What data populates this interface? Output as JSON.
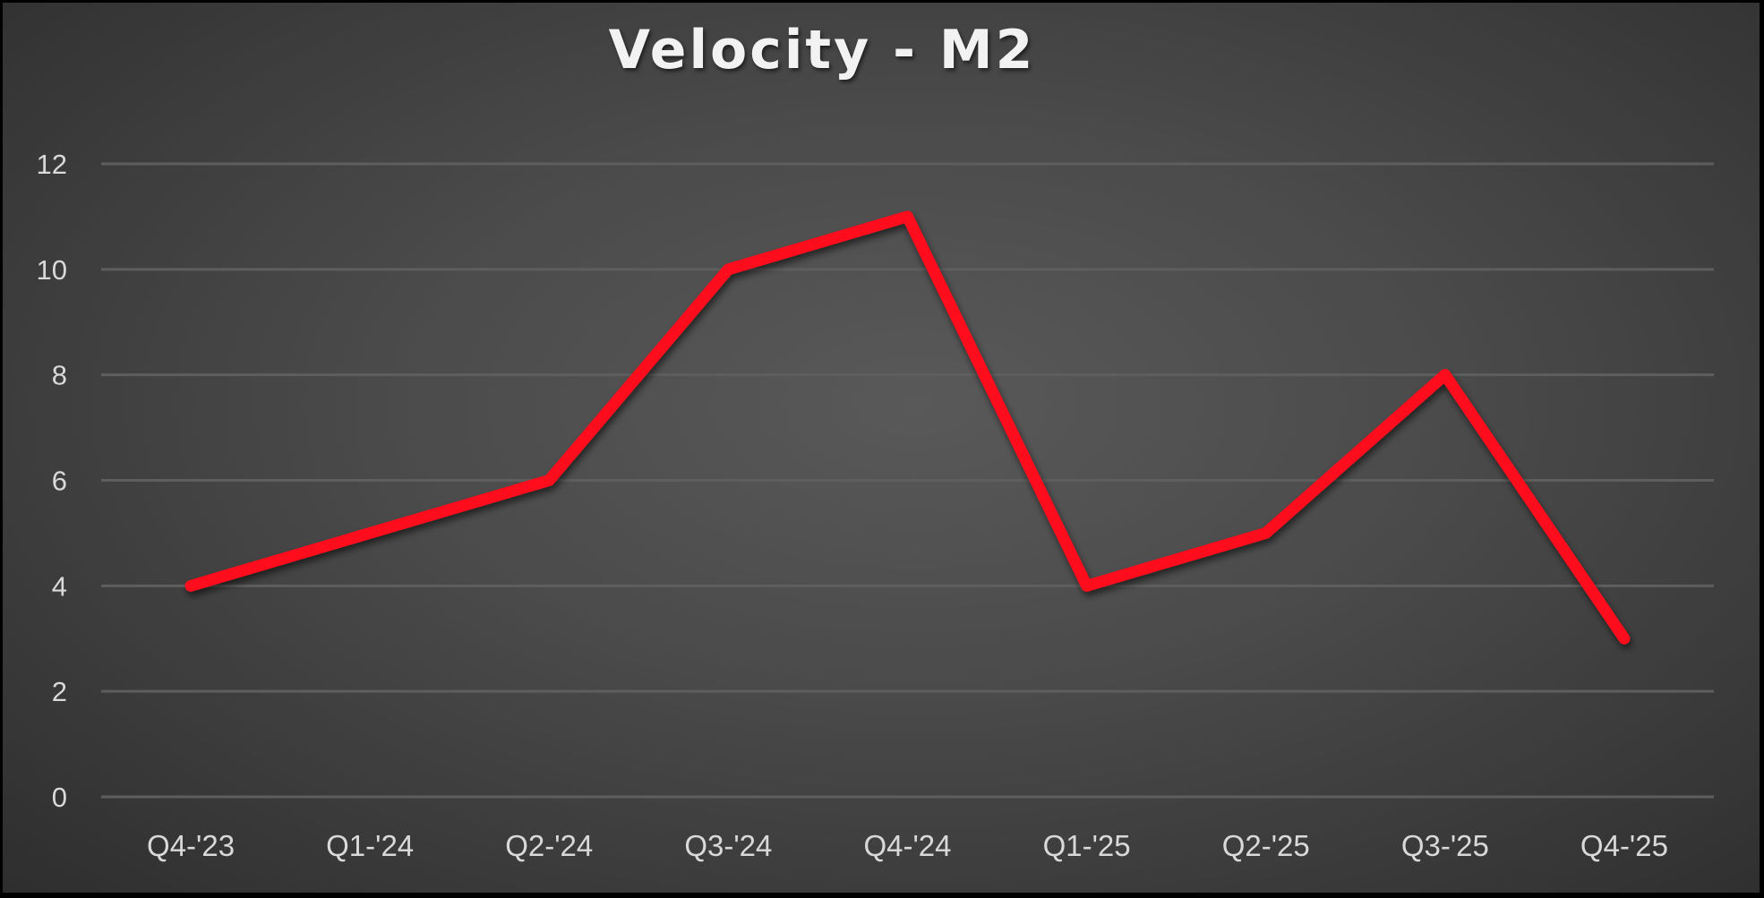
{
  "chart_data": {
    "type": "line",
    "title": "Velocity - M2",
    "xlabel": "",
    "ylabel": "",
    "categories": [
      "Q4-'23",
      "Q1-'24",
      "Q2-'24",
      "Q3-'24",
      "Q4-'24",
      "Q1-'25",
      "Q2-'25",
      "Q3-'25",
      "Q4-'25"
    ],
    "series": [
      {
        "name": "Velocity - M2",
        "values": [
          4,
          5,
          6,
          10,
          11,
          4,
          5,
          8,
          3
        ],
        "color": "#ff0a1a"
      }
    ],
    "ylim": [
      0,
      12
    ],
    "yticks": [
      0,
      2,
      4,
      6,
      8,
      10,
      12
    ],
    "grid": true,
    "legend": "none"
  },
  "colors": {
    "line": "#ff0a1a",
    "gridline": "#5e5e5e",
    "text": "#d9d9d9",
    "title": "#f2f2f2"
  }
}
